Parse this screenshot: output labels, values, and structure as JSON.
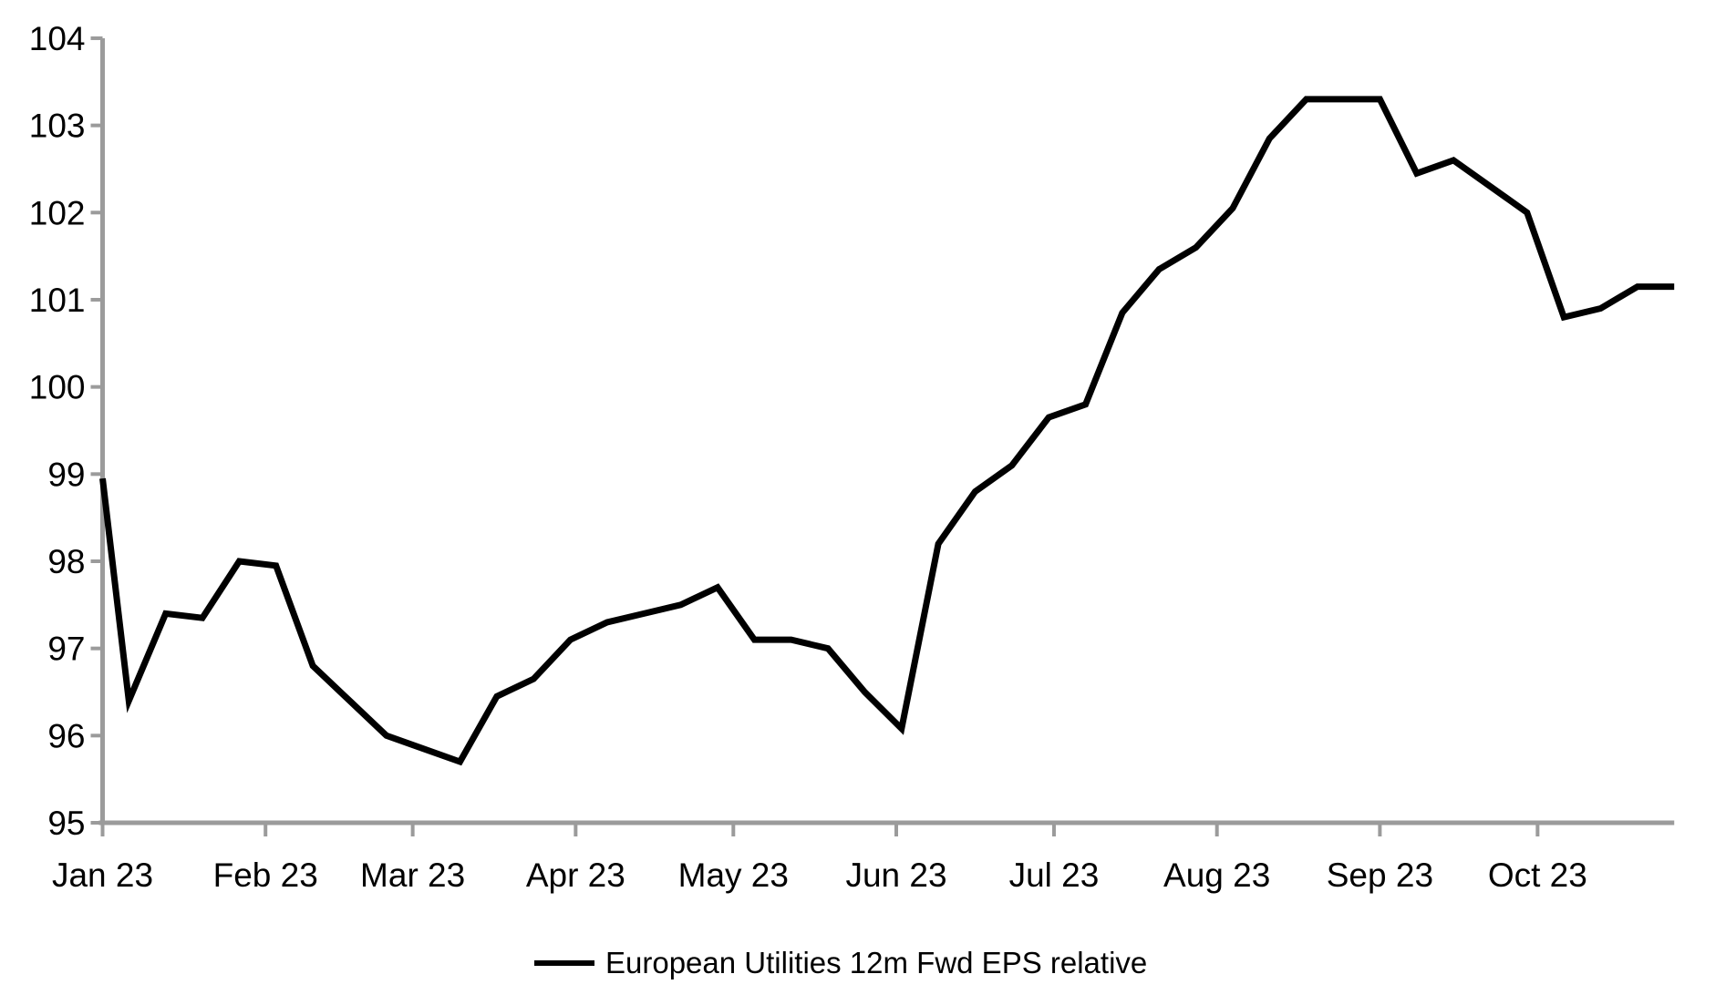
{
  "page": {
    "background": "#ffffff"
  },
  "chart_data": {
    "type": "line",
    "title": "",
    "grid": false,
    "axis_color": "#9b9b9b",
    "line_color": "#000000",
    "text_color": "#000000",
    "legend": {
      "position": "bottom-center",
      "entries": [
        {
          "label": "European Utilities 12m Fwd EPS relative",
          "color": "#000000"
        }
      ]
    },
    "y_axis": {
      "min": 95,
      "max": 104,
      "tick_interval": 1,
      "tick_labels": [
        "95",
        "96",
        "97",
        "98",
        "99",
        "100",
        "101",
        "102",
        "103",
        "104"
      ]
    },
    "x_axis": {
      "tick_labels": [
        "Jan 23",
        "Feb 23",
        "Mar 23",
        "Apr 23",
        "May 23",
        "Jun 23",
        "Jul 23",
        "Aug 23",
        "Sep 23",
        "Oct 23"
      ],
      "tick_days": [
        0,
        31,
        59,
        90,
        120,
        151,
        181,
        212,
        243,
        273
      ],
      "span_days": [
        0,
        299
      ]
    },
    "series": [
      {
        "name": "European Utilities 12m Fwd EPS relative",
        "color": "#000000",
        "dates": [
          "1 Jan 23",
          "6 Jan 23",
          "13 Jan 23",
          "20 Jan 23",
          "27 Jan 23",
          "3 Feb 23",
          "10 Feb 23",
          "17 Feb 23",
          "24 Feb 23",
          "3 Mar 23",
          "10 Mar 23",
          "17 Mar 23",
          "24 Mar 23",
          "31 Mar 23",
          "7 Apr 23",
          "14 Apr 23",
          "21 Apr 23",
          "28 Apr 23",
          "5 May 23",
          "12 May 23",
          "19 May 23",
          "26 May 23",
          "2 Jun 23",
          "9 Jun 23",
          "16 Jun 23",
          "23 Jun 23",
          "30 Jun 23",
          "7 Jul 23",
          "14 Jul 23",
          "21 Jul 23",
          "28 Jul 23",
          "4 Aug 23",
          "11 Aug 23",
          "18 Aug 23",
          "25 Aug 23",
          "1 Sep 23",
          "8 Sep 23",
          "15 Sep 23",
          "22 Sep 23",
          "29 Sep 23",
          "6 Oct 23",
          "13 Oct 23",
          "20 Oct 23",
          "27 Oct 23"
        ],
        "days": [
          0,
          5,
          12,
          19,
          26,
          33,
          40,
          47,
          54,
          61,
          68,
          75,
          82,
          89,
          96,
          103,
          110,
          117,
          124,
          131,
          138,
          145,
          152,
          159,
          166,
          173,
          180,
          187,
          194,
          201,
          208,
          215,
          222,
          229,
          236,
          243,
          250,
          257,
          264,
          271,
          278,
          285,
          292,
          299
        ],
        "values": [
          98.95,
          96.4,
          97.4,
          97.35,
          98.0,
          97.95,
          96.8,
          96.4,
          96.0,
          95.85,
          95.7,
          96.45,
          96.65,
          97.1,
          97.3,
          97.4,
          97.5,
          97.7,
          97.1,
          97.1,
          97.0,
          96.5,
          96.08,
          98.2,
          98.8,
          99.1,
          99.65,
          99.8,
          100.85,
          101.35,
          101.6,
          102.05,
          102.85,
          103.3,
          103.3,
          103.3,
          102.45,
          102.6,
          102.3,
          102.0,
          100.8,
          100.9,
          101.15,
          101.15
        ]
      }
    ]
  }
}
